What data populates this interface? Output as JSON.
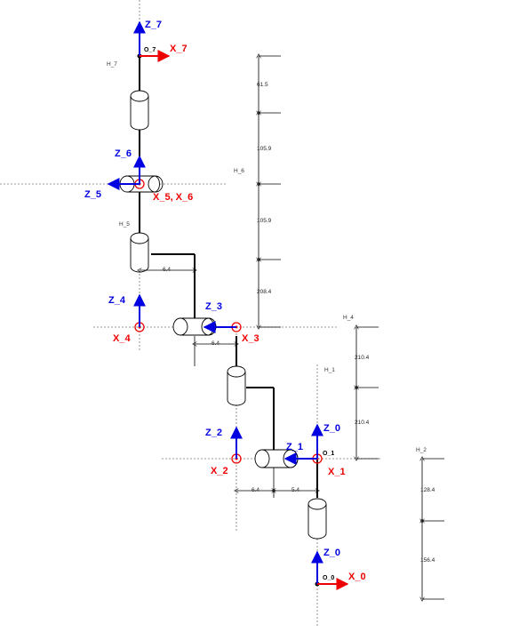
{
  "colors": {
    "z_axis": "#0000e0",
    "x_axis": "#ee0000",
    "link": "#000000",
    "guide": "#777777"
  },
  "frames": {
    "z7": "Z_7",
    "x7": "X_7",
    "o7": "O_7",
    "z6": "Z_6",
    "z5": "Z_5",
    "x56": "X_5, X_6",
    "z4": "Z_4",
    "x4": "X_4",
    "z3": "Z_3",
    "x3": "X_3",
    "z2": "Z_2",
    "x2": "X_2",
    "z1": "Z_1",
    "x1": "X_1",
    "o1": "O_1",
    "z0_top": "Z_0",
    "z0": "Z_0",
    "x0": "X_0",
    "o0": "O_0"
  },
  "heights": {
    "h7": "H_7",
    "h6": "H_6",
    "h5": "H_5",
    "h4": "H_4",
    "h1": "H_1",
    "h2": "H_2"
  },
  "dimensions": {
    "d61_5": "61.5",
    "d105_9a": "105.9",
    "d105_9b": "105.9",
    "d208_4": "208.4",
    "d210_4a": "210.4",
    "d210_4b": "210.4",
    "d128_4": "128.4",
    "d156_4": "156.4",
    "off_upper": "6.4",
    "off_mid": "6.4",
    "off_low_a": "6.4",
    "off_low_b": "5.4"
  }
}
